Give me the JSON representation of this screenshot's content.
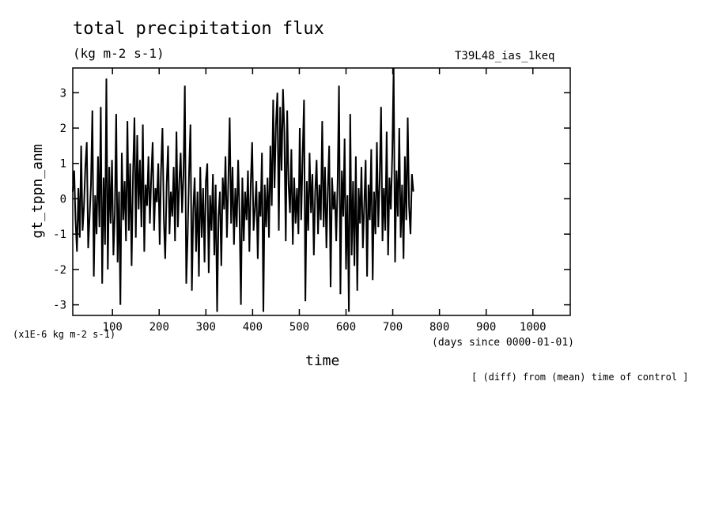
{
  "chart_data": {
    "type": "line",
    "title": "total precipitation flux",
    "subtitle": "(kg m-2 s-1)",
    "experiment": "T39L48_ias_1keq",
    "ylabel": "gt_tppn_anm",
    "xlabel": "time",
    "x_units": "(days since 0000-01-01)",
    "y_scale_note": "(x1E-6 kg m-2 s-1)",
    "note": "[ (diff) from (mean) time of control ]",
    "xlim": [
      15,
      1080
    ],
    "ylim": [
      -3.3,
      3.7
    ],
    "x_ticks": [
      100,
      200,
      300,
      400,
      500,
      600,
      700,
      800,
      900,
      1000
    ],
    "x_tick_labels": [
      "100",
      "200",
      "300",
      "400",
      "500",
      "600",
      "700",
      "800",
      "900",
      "1000"
    ],
    "y_ticks": [
      -3,
      -2,
      -1,
      0,
      1,
      2,
      3
    ],
    "y_tick_labels": [
      "-3",
      "-2",
      "-1",
      "0",
      "1",
      "2",
      "3"
    ],
    "grid": false,
    "series": [
      {
        "x_start": 15,
        "x_step": 3,
        "values": [
          0.2,
          0.8,
          -0.6,
          -1.5,
          0.3,
          -1.1,
          1.5,
          -0.9,
          -0.2,
          0.9,
          1.6,
          -1.4,
          -0.5,
          0.4,
          2.5,
          -2.2,
          0.1,
          -1.0,
          1.2,
          -0.8,
          2.6,
          -2.4,
          0.6,
          -1.3,
          3.4,
          -2.0,
          0.9,
          -0.7,
          1.1,
          -1.6,
          -0.4,
          2.4,
          -1.8,
          0.2,
          -3.0,
          1.3,
          -0.6,
          0.5,
          -1.2,
          2.2,
          -0.9,
          1.0,
          -1.9,
          0.7,
          2.3,
          -1.1,
          1.8,
          -0.3,
          1.1,
          -0.8,
          2.1,
          -1.5,
          0.4,
          -0.2,
          1.2,
          -0.7,
          0.6,
          1.6,
          -0.9,
          0.3,
          -0.1,
          1.0,
          -1.3,
          0.8,
          2.0,
          -0.6,
          -1.7,
          0.4,
          1.5,
          -1.0,
          0.2,
          -0.5,
          0.9,
          -1.2,
          1.9,
          -0.8,
          0.5,
          1.3,
          -0.4,
          0.7,
          3.2,
          -2.4,
          -1.0,
          0.8,
          2.1,
          -2.6,
          -0.3,
          0.6,
          -1.5,
          0.2,
          -2.2,
          0.9,
          -1.1,
          0.3,
          -1.8,
          0.5,
          1.0,
          -2.1,
          0.1,
          -0.9,
          0.7,
          -1.6,
          0.4,
          -3.2,
          -0.5,
          0.2,
          -1.9,
          0.6,
          -0.3,
          1.2,
          -1.1,
          0.5,
          2.3,
          -0.7,
          0.9,
          -1.3,
          0.3,
          -0.8,
          1.1,
          -0.4,
          -3.0,
          0.6,
          -1.2,
          0.2,
          -0.6,
          0.8,
          -1.5,
          0.4,
          1.6,
          -0.9,
          -0.3,
          0.5,
          -1.7,
          0.2,
          -0.5,
          1.3,
          -3.2,
          0.4,
          -0.8,
          0.6,
          -1.1,
          1.5,
          -0.2,
          2.8,
          0.3,
          2.1,
          3.0,
          -0.9,
          2.6,
          0.8,
          3.1,
          1.9,
          -1.2,
          2.5,
          0.4,
          -0.4,
          1.4,
          -1.3,
          0.6,
          -0.7,
          0.3,
          -1.0,
          2.0,
          -0.6,
          1.2,
          2.8,
          -2.9,
          0.5,
          -0.9,
          1.3,
          -0.4,
          0.7,
          -1.6,
          0.2,
          1.1,
          -1.0,
          0.4,
          -0.6,
          2.2,
          -0.8,
          0.9,
          -1.4,
          0.3,
          1.5,
          -2.5,
          0.6,
          -0.3,
          0.2,
          -1.2,
          0.5,
          3.2,
          -2.7,
          0.8,
          -0.5,
          1.7,
          -2.0,
          0.1,
          -3.2,
          2.4,
          -1.6,
          0.5,
          -1.9,
          1.2,
          -2.6,
          0.3,
          -0.7,
          0.9,
          -1.4,
          -0.2,
          1.1,
          -2.2,
          0.4,
          -0.6,
          1.4,
          -2.3,
          0.2,
          -1.0,
          1.6,
          -0.8,
          0.5,
          2.6,
          -1.2,
          0.3,
          -0.9,
          1.9,
          -1.6,
          0.6,
          -0.3,
          1.3,
          3.7,
          -1.8,
          0.8,
          -0.5,
          2.0,
          -1.1,
          0.4,
          -1.7,
          1.2,
          -0.6,
          2.3,
          -0.2,
          -1.0,
          0.7,
          0.2
        ]
      }
    ]
  }
}
